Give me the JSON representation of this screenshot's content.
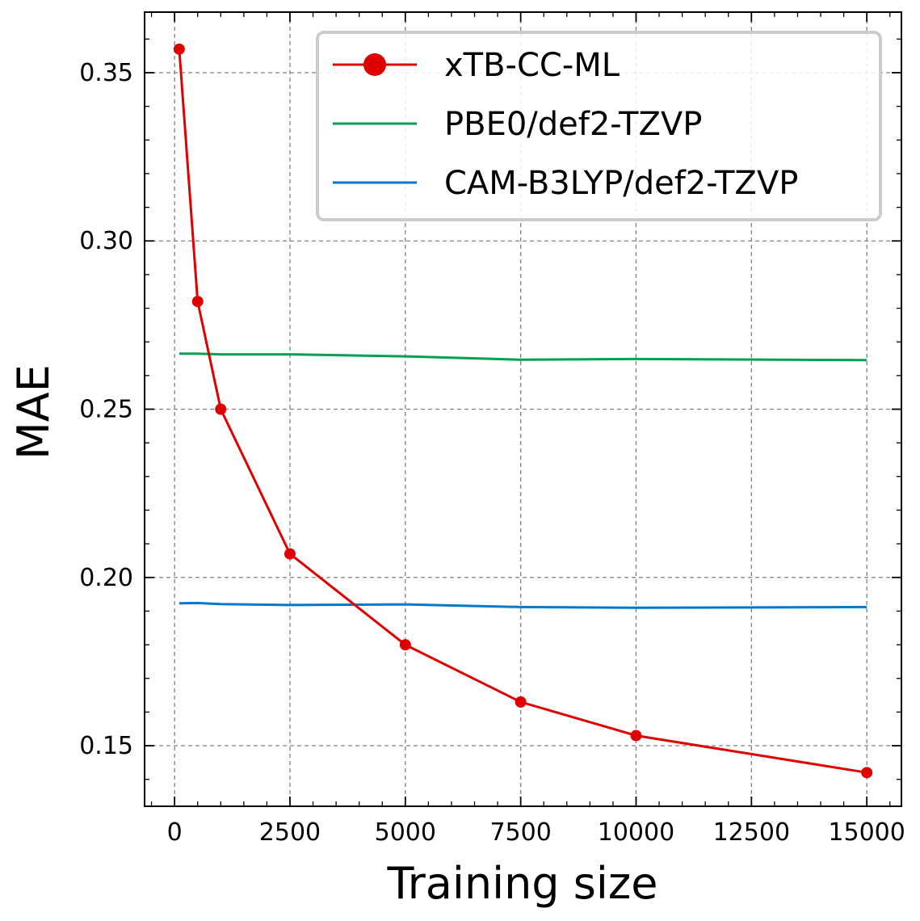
{
  "chart_data": {
    "type": "line",
    "title": "",
    "xlabel": "Training size",
    "ylabel": "MAE",
    "xlim": [
      -650,
      15750
    ],
    "ylim": [
      0.132,
      0.368
    ],
    "x_ticks": [
      0,
      2500,
      5000,
      7500,
      10000,
      12500,
      15000
    ],
    "x_tick_labels": [
      "0",
      "2500",
      "5000",
      "7500",
      "10000",
      "12500",
      "15000"
    ],
    "y_ticks": [
      0.15,
      0.2,
      0.25,
      0.3,
      0.35
    ],
    "y_tick_labels": [
      "0.15",
      "0.20",
      "0.25",
      "0.30",
      "0.35"
    ],
    "grid": true,
    "legend_position": "top-right",
    "series": [
      {
        "name": "xTB-CC-ML",
        "color": "#e00000",
        "marker": "circle",
        "x": [
          100,
          500,
          1000,
          2500,
          5000,
          7500,
          10000,
          15000
        ],
        "y": [
          0.357,
          0.282,
          0.25,
          0.207,
          0.18,
          0.163,
          0.153,
          0.142
        ]
      },
      {
        "name": "PBE0/def2-TZVP",
        "color": "#00a050",
        "marker": "none",
        "x": [
          100,
          500,
          1000,
          2500,
          5000,
          7500,
          10000,
          15000
        ],
        "y": [
          0.2665,
          0.2665,
          0.2663,
          0.2663,
          0.2657,
          0.2647,
          0.2649,
          0.2646
        ]
      },
      {
        "name": "CAM-B3LYP/def2-TZVP",
        "color": "#0078d0",
        "marker": "none",
        "x": [
          100,
          500,
          1000,
          2500,
          5000,
          7500,
          10000,
          15000
        ],
        "y": [
          0.1923,
          0.1924,
          0.1921,
          0.1918,
          0.192,
          0.1912,
          0.191,
          0.1912
        ]
      }
    ]
  }
}
